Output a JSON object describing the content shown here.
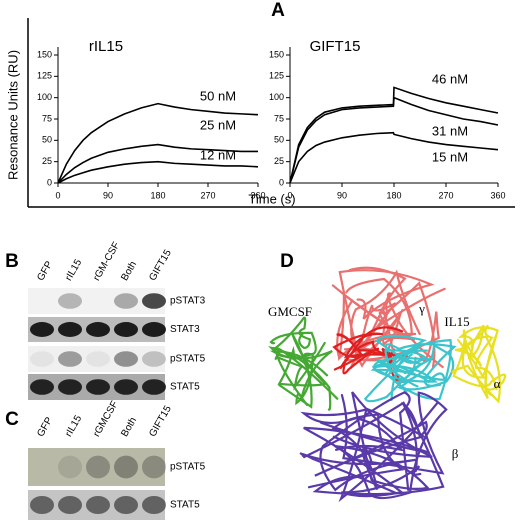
{
  "chart_data": [
    {
      "type": "line",
      "title": "rIL15",
      "x": [
        0,
        15,
        30,
        45,
        60,
        90,
        120,
        150,
        180,
        210,
        240,
        270,
        300,
        330,
        360
      ],
      "series": [
        {
          "name": "50 nM",
          "color": "#000000",
          "values": [
            0,
            22,
            38,
            50,
            59,
            72,
            81,
            88,
            93,
            89,
            86,
            84,
            82,
            81,
            80
          ]
        },
        {
          "name": "25 nM",
          "color": "#000000",
          "values": [
            0,
            10,
            18,
            24,
            29,
            36,
            40,
            43,
            45,
            42,
            40,
            39,
            38,
            37,
            37
          ]
        },
        {
          "name": "12 nM",
          "color": "#000000",
          "values": [
            0,
            5,
            9,
            12,
            15,
            19,
            22,
            24,
            25,
            23,
            22,
            21,
            20,
            20,
            19
          ]
        }
      ],
      "xlim": [
        0,
        360
      ],
      "xticks": [
        0,
        90,
        180,
        270,
        360
      ],
      "ylim": [
        0,
        150
      ],
      "yticks": [
        0,
        25,
        50,
        75,
        100,
        125,
        150
      ]
    },
    {
      "type": "line",
      "title": "GIFT15",
      "x": [
        0,
        15,
        30,
        45,
        60,
        90,
        120,
        150,
        179,
        180,
        210,
        240,
        270,
        300,
        330,
        360
      ],
      "series": [
        {
          "name": "46 nM",
          "color": "#000000",
          "values": [
            0,
            45,
            65,
            76,
            83,
            88,
            90,
            91,
            92,
            112,
            105,
            99,
            94,
            90,
            86,
            82
          ]
        },
        {
          "name": "31 nM",
          "color": "#000000",
          "values": [
            0,
            42,
            62,
            73,
            80,
            86,
            88,
            89,
            90,
            100,
            92,
            85,
            80,
            75,
            72,
            68
          ]
        },
        {
          "name": "15 nM",
          "color": "#000000",
          "values": [
            0,
            25,
            37,
            44,
            48,
            53,
            56,
            58,
            59,
            57,
            52,
            48,
            45,
            43,
            41,
            39
          ]
        }
      ],
      "xlim": [
        0,
        360
      ],
      "xticks": [
        0,
        90,
        180,
        270,
        360
      ],
      "ylim": [
        0,
        150
      ],
      "yticks": [
        0,
        25,
        50,
        75,
        100,
        125,
        150
      ]
    }
  ],
  "panel_a": {
    "label": "A",
    "y_label": "Resonance Units (RU)",
    "x_label": "Time (s)"
  },
  "panel_b": {
    "label": "B",
    "lanes": [
      "GFP",
      "rIL15",
      "rGM-CSF",
      "Both",
      "GIFT15"
    ],
    "rows": [
      "pSTAT3",
      "STAT3",
      "pSTAT5",
      "STAT5"
    ]
  },
  "panel_c": {
    "label": "C",
    "lanes": [
      "GFP",
      "rIL15",
      "rGMCSF",
      "Both",
      "GIFT15"
    ],
    "rows": [
      "pSTAT5",
      "STAT5"
    ]
  },
  "panel_d": {
    "label": "D",
    "chains": [
      "GMCSF",
      "γ",
      "IL15",
      "α",
      "β"
    ]
  }
}
